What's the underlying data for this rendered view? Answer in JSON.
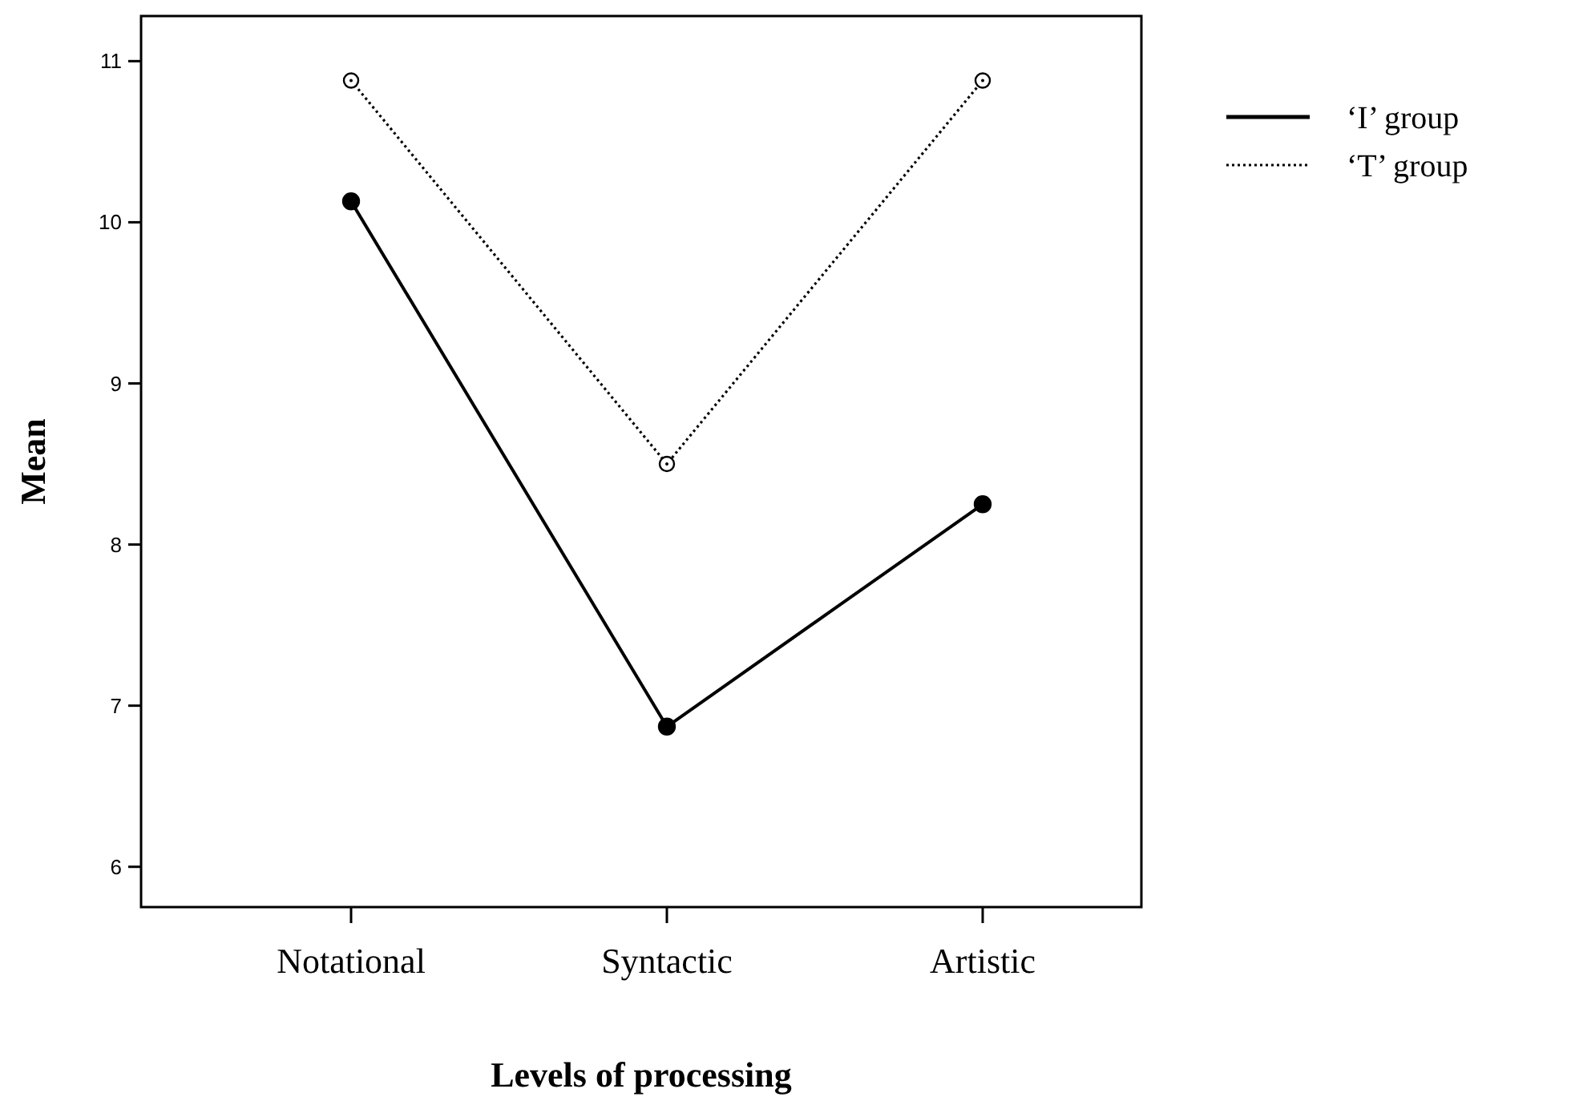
{
  "chart_data": {
    "type": "line",
    "xlabel": "Levels of processing",
    "ylabel": "Mean",
    "categories": [
      "Notational",
      "Syntactic",
      "Artistic"
    ],
    "series": [
      {
        "name": "‘I’ group",
        "color": "#000000",
        "values": [
          10.13,
          6.87,
          8.25
        ],
        "line_style": "solid",
        "marker": "circle"
      },
      {
        "name": "‘T’ group",
        "color": "#000000",
        "values": [
          10.88,
          8.5,
          10.88
        ],
        "line_style": "dotted",
        "marker": "circle"
      }
    ],
    "ylim": [
      5.75,
      11.28
    ],
    "yticks": [
      6,
      7,
      8,
      9,
      10,
      11
    ],
    "grid": false,
    "legend": "right"
  }
}
